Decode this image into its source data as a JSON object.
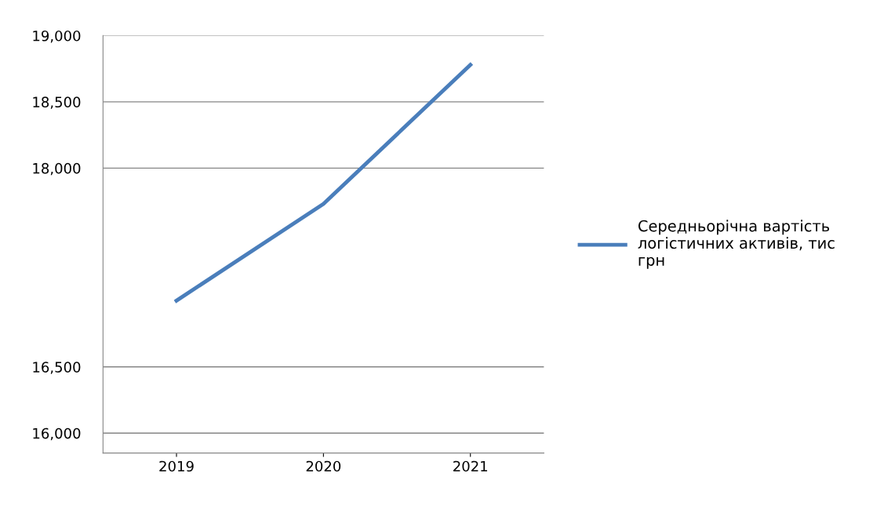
{
  "chart_data": {
    "type": "line",
    "categories": [
      "2019",
      "2020",
      "2021"
    ],
    "series": [
      {
        "name": "Середньорічна вартість логістичних активів, тис грн",
        "color": "#4a7ebb",
        "values": [
          17000,
          17730,
          18780
        ]
      }
    ],
    "ylim": [
      15850,
      19000
    ],
    "yticks": [
      {
        "value": 16000,
        "label": "16,000"
      },
      {
        "value": 16500,
        "label": "16,500"
      },
      {
        "value": 18000,
        "label": "18,000"
      },
      {
        "value": 18500,
        "label": "18,500"
      },
      {
        "value": 19000,
        "label": "19,000"
      }
    ],
    "grid": "y",
    "legend": "right",
    "marker": "none",
    "line_style": "solid"
  }
}
